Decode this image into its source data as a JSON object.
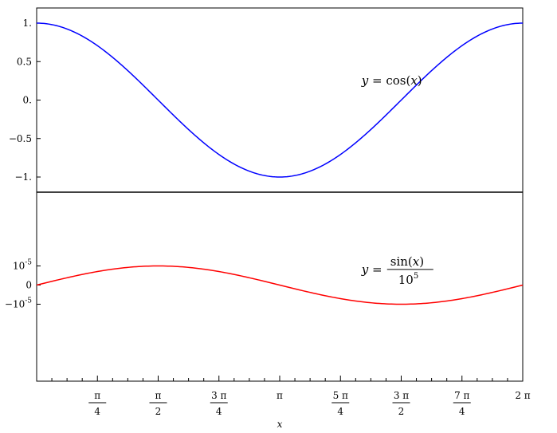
{
  "chart_data": [
    {
      "type": "line",
      "panel": "top",
      "title": "",
      "xlabel": "",
      "ylabel": "",
      "xlim": [
        0,
        6.283185307179586
      ],
      "ylim": [
        -1.2,
        1.2
      ],
      "yticks": [
        1,
        0.5,
        0,
        -0.5,
        -1
      ],
      "ytick_labels": [
        "1.",
        "0.5",
        "0.",
        "−0.5",
        "−1."
      ],
      "grid": false,
      "series": [
        {
          "function": "cos(x)",
          "color": "#0000ff",
          "samples": 200
        }
      ],
      "annotation": {
        "lhs": "y",
        "eq": "=",
        "func": "cos",
        "arg": "x",
        "at": [
          4.2,
          0.2
        ]
      }
    },
    {
      "type": "line",
      "panel": "bottom",
      "title": "",
      "xlabel": "x",
      "ylabel": "",
      "xlim": [
        0,
        6.283185307179586
      ],
      "ylim": [
        -5e-05,
        2e-05
      ],
      "yticks": [
        1e-05,
        0,
        -1e-05
      ],
      "ytick_labels": [
        {
          "base": "10",
          "exp": "-5"
        },
        {
          "base": "0",
          "exp": ""
        },
        {
          "base": "−10",
          "exp": "-5"
        }
      ],
      "grid": false,
      "series": [
        {
          "function": "sin(x)/10^5",
          "color": "#ff0000",
          "samples": 200
        }
      ],
      "xticks": [
        {
          "value": 0.7853981633974483,
          "num": "π",
          "den": "4"
        },
        {
          "value": 1.5707963267948966,
          "num": "π",
          "den": "2"
        },
        {
          "value": 2.356194490192345,
          "num": "3 π",
          "den": "4"
        },
        {
          "value": 3.141592653589793,
          "num": "π",
          "den": ""
        },
        {
          "value": 3.9269908169872414,
          "num": "5 π",
          "den": "4"
        },
        {
          "value": 4.71238898038469,
          "num": "3 π",
          "den": "2"
        },
        {
          "value": 5.497787143782138,
          "num": "7 π",
          "den": "4"
        },
        {
          "value": 6.283185307179586,
          "num": "2 π",
          "den": ""
        }
      ],
      "annotation": {
        "lhs": "y",
        "eq": "=",
        "numerator_func": "sin",
        "numerator_arg": "x",
        "denominator_base": "10",
        "denominator_exp": "5",
        "at": [
          4.2,
          6.1e-06
        ]
      }
    }
  ]
}
